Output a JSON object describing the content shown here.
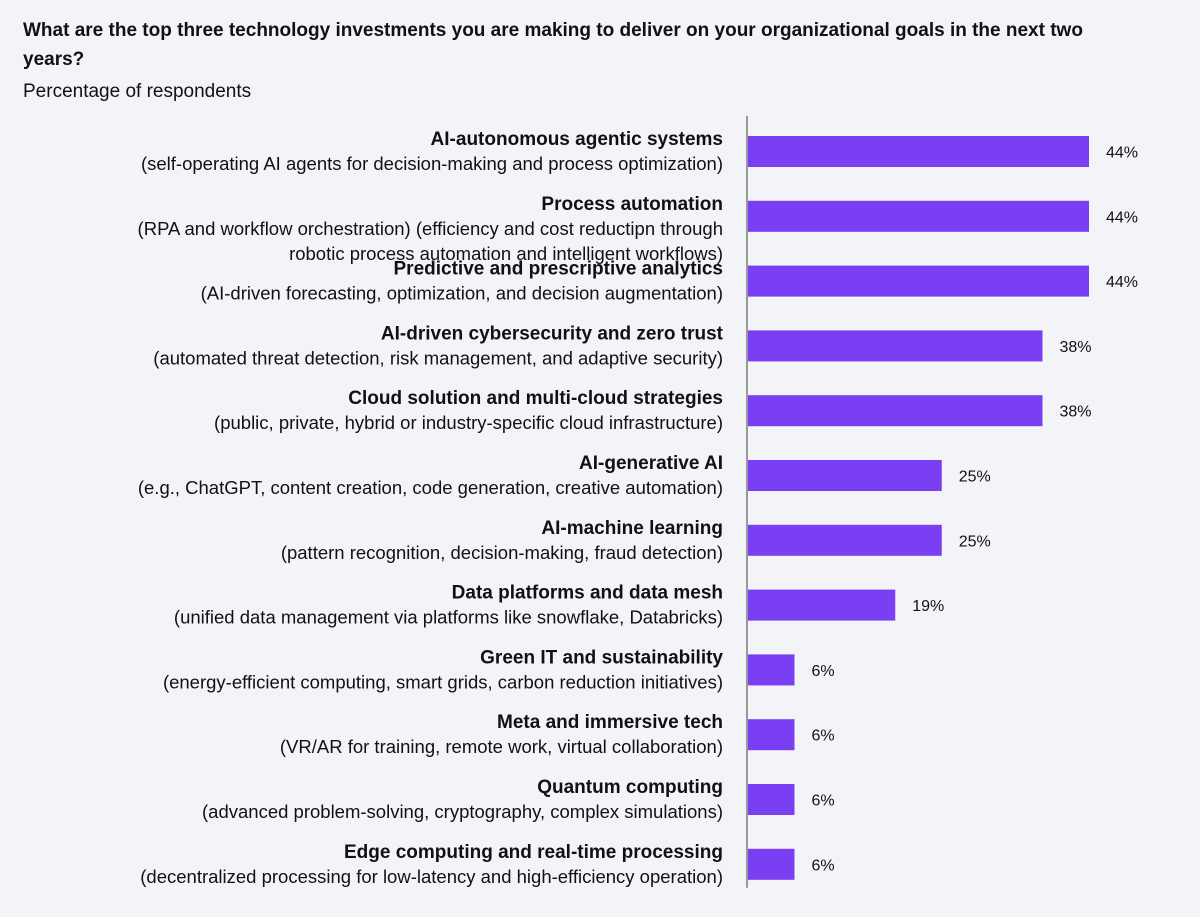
{
  "title": "What are the top three technology investments you are making to deliver on your organizational goals in the next two years?",
  "subtitle": "Percentage of respondents",
  "colors": {
    "bar": "#7a3ff2",
    "axis": "#7a7a7a",
    "background": "#f2f4f8",
    "text": "#111111"
  },
  "chart_data": {
    "type": "bar",
    "orientation": "horizontal",
    "xlim": [
      0,
      44
    ],
    "value_suffix": "%",
    "grid": false,
    "categories": [
      {
        "name": "AI-autonomous agentic systems",
        "description": [
          "(self-operating AI agents for decision-making and process optimization)"
        ],
        "value": 44
      },
      {
        "name": "Process automation",
        "description": [
          "(RPA and workflow orchestration) (efficiency and cost reductipn through",
          "robotic process automation and intelligent workflows)"
        ],
        "value": 44
      },
      {
        "name": "Predictive and prescriptive analytics",
        "description": [
          "(AI-driven forecasting, optimization, and decision augmentation)"
        ],
        "value": 44
      },
      {
        "name": "AI-driven cybersecurity and zero trust",
        "description": [
          "(automated threat detection, risk management, and adaptive security)"
        ],
        "value": 38
      },
      {
        "name": "Cloud solution and multi-cloud strategies",
        "description": [
          "(public, private, hybrid or industry-specific cloud infrastructure)"
        ],
        "value": 38
      },
      {
        "name": "AI-generative AI",
        "description": [
          "(e.g., ChatGPT, content creation, code generation, creative automation)"
        ],
        "value": 25
      },
      {
        "name": "AI-machine learning",
        "description": [
          "(pattern recognition, decision-making, fraud detection)"
        ],
        "value": 25
      },
      {
        "name": "Data platforms and data mesh",
        "description": [
          "(unified data management via platforms like snowflake, Databricks)"
        ],
        "value": 19
      },
      {
        "name": "Green IT and sustainability",
        "description": [
          "(energy-efficient computing, smart grids, carbon reduction initiatives)"
        ],
        "value": 6
      },
      {
        "name": "Meta and immersive tech",
        "description": [
          "(VR/AR for training, remote work, virtual collaboration)"
        ],
        "value": 6
      },
      {
        "name": "Quantum computing",
        "description": [
          "(advanced problem-solving, cryptography, complex simulations)"
        ],
        "value": 6
      },
      {
        "name": "Edge computing and real-time processing",
        "description": [
          "(decentralized processing for low-latency and high-efficiency operation)"
        ],
        "value": 6
      }
    ]
  }
}
